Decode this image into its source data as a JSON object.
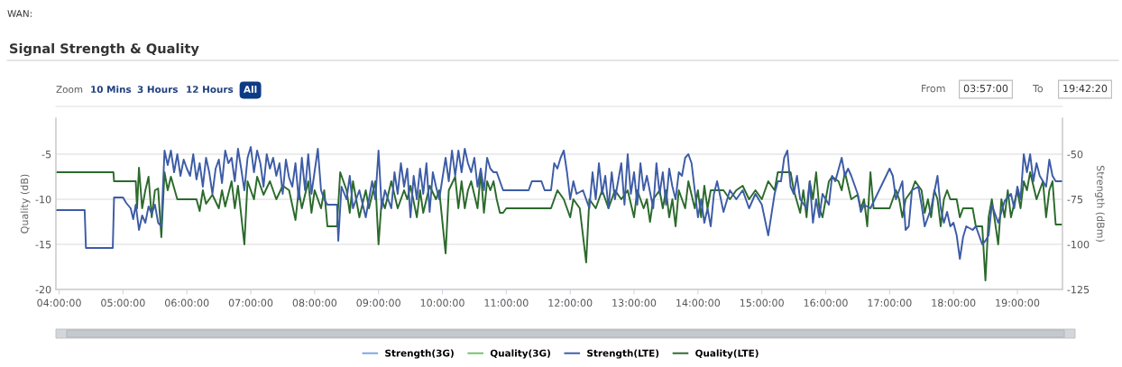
{
  "chart_data": {
    "type": "line",
    "title": "Signal Strength & Quality",
    "ylabel": "Quality (dB)",
    "y2label": "Strength (dBm)",
    "annotations": [
      "WAN:",
      "Zoom",
      "10 Mins",
      "3 Hours",
      "12 Hours",
      "All",
      "From",
      "03:57:00",
      "To",
      "19:42:20"
    ],
    "xlim": [
      3.95,
      19.706
    ],
    "xticks": [
      {
        "value": 4,
        "label": "04:00:00"
      },
      {
        "value": 5,
        "label": "05:00:00"
      },
      {
        "value": 6,
        "label": "06:00:00"
      },
      {
        "value": 7,
        "label": "07:00:00"
      },
      {
        "value": 8,
        "label": "08:00:00"
      },
      {
        "value": 9,
        "label": "09:00:00"
      },
      {
        "value": 10,
        "label": "10:00:00"
      },
      {
        "value": 11,
        "label": "11:00:00"
      },
      {
        "value": 12,
        "label": "12:00:00"
      },
      {
        "value": 13,
        "label": "13:00:00"
      },
      {
        "value": 14,
        "label": "14:00:00"
      },
      {
        "value": 15,
        "label": "15:00:00"
      },
      {
        "value": 16,
        "label": "16:00:00"
      },
      {
        "value": 17,
        "label": "17:00:00"
      },
      {
        "value": 18,
        "label": "18:00:00"
      },
      {
        "value": 19,
        "label": "19:00:00"
      }
    ],
    "ylim": [
      -20,
      -1
    ],
    "yticks": [
      -20,
      -15,
      -10,
      -5
    ],
    "y2lim": [
      -125,
      -30
    ],
    "y2ticks": [
      -125,
      -100,
      -75,
      -50
    ],
    "grid": "y",
    "legend": "bottom",
    "marker": "none",
    "line_style": "solid",
    "series": [
      {
        "name": "Strength(3G)",
        "color": "#7ca6e0",
        "axis": "y2"
      },
      {
        "name": "Quality(3G)",
        "color": "#6cc36c"
      },
      {
        "name": "Strength(LTE)",
        "color": "#3d5ca6",
        "axis": "y2",
        "x": [
          3.95,
          4.4,
          4.42,
          4.84,
          4.86,
          5.0,
          5.05,
          5.12,
          5.16,
          5.2,
          5.25,
          5.3,
          5.35,
          5.4,
          5.45,
          5.5,
          5.55,
          5.6,
          5.65,
          5.7,
          5.75,
          5.8,
          5.85,
          5.9,
          5.95,
          6.0,
          6.05,
          6.1,
          6.15,
          6.2,
          6.25,
          6.3,
          6.35,
          6.4,
          6.45,
          6.5,
          6.55,
          6.6,
          6.65,
          6.7,
          6.75,
          6.8,
          6.85,
          6.9,
          6.95,
          7.0,
          7.05,
          7.1,
          7.15,
          7.2,
          7.25,
          7.3,
          7.35,
          7.4,
          7.45,
          7.5,
          7.55,
          7.6,
          7.65,
          7.7,
          7.75,
          7.8,
          7.85,
          7.9,
          7.95,
          8.05,
          8.1,
          8.15,
          8.2,
          8.35,
          8.37,
          8.42,
          8.5,
          8.55,
          8.6,
          8.7,
          8.8,
          8.9,
          8.95,
          9.0,
          9.05,
          9.1,
          9.2,
          9.25,
          9.3,
          9.35,
          9.4,
          9.45,
          9.5,
          9.55,
          9.6,
          9.65,
          9.7,
          9.75,
          9.8,
          9.85,
          9.9,
          9.95,
          10.05,
          10.1,
          10.15,
          10.2,
          10.25,
          10.3,
          10.35,
          10.4,
          10.45,
          10.5,
          10.55,
          10.6,
          10.65,
          10.7,
          10.75,
          10.8,
          10.85,
          10.95,
          11.35,
          11.4,
          11.55,
          11.6,
          11.7,
          11.75,
          11.8,
          11.85,
          11.9,
          11.95,
          12.0,
          12.05,
          12.1,
          12.2,
          12.3,
          12.35,
          12.4,
          12.45,
          12.5,
          12.55,
          12.6,
          12.65,
          12.7,
          12.75,
          12.8,
          12.85,
          12.9,
          12.95,
          13.0,
          13.05,
          13.1,
          13.15,
          13.2,
          13.3,
          13.35,
          13.4,
          13.45,
          13.5,
          13.55,
          13.6,
          13.65,
          13.7,
          13.75,
          13.8,
          13.85,
          13.9,
          13.95,
          14.0,
          14.05,
          14.1,
          14.15,
          14.2,
          14.25,
          14.3,
          14.4,
          14.5,
          14.6,
          14.7,
          14.8,
          14.9,
          15.0,
          15.1,
          15.2,
          15.25,
          15.3,
          15.35,
          15.4,
          15.45,
          15.5,
          15.55,
          15.6,
          15.7,
          15.75,
          15.8,
          15.85,
          15.9,
          15.95,
          16.05,
          16.1,
          16.15,
          16.25,
          16.3,
          16.35,
          16.4,
          16.5,
          16.55,
          16.6,
          16.7,
          17.0,
          17.05,
          17.1,
          17.2,
          17.25,
          17.3,
          17.35,
          17.45,
          17.5,
          17.55,
          17.65,
          17.75,
          17.8,
          17.85,
          17.9,
          17.95,
          18.0,
          18.05,
          18.1,
          18.15,
          18.2,
          18.3,
          18.35,
          18.45,
          18.5,
          18.55,
          18.6,
          18.7,
          18.8,
          18.9,
          18.95,
          19.0,
          19.05,
          19.1,
          19.15,
          19.2,
          19.25,
          19.3,
          19.35,
          19.45,
          19.5,
          19.55,
          19.6,
          19.706
        ],
        "values": [
          -81,
          -81,
          -102,
          -102,
          -74,
          -74,
          -77,
          -80,
          -86,
          -78,
          -92,
          -84,
          -88,
          -79,
          -83,
          -78,
          -88,
          -90,
          -48,
          -56,
          -48,
          -60,
          -50,
          -62,
          -53,
          -58,
          -62,
          -50,
          -64,
          -55,
          -68,
          -52,
          -60,
          -72,
          -58,
          -53,
          -66,
          -48,
          -55,
          -52,
          -65,
          -47,
          -58,
          -70,
          -52,
          -46,
          -60,
          -48,
          -55,
          -68,
          -50,
          -58,
          -52,
          -62,
          -55,
          -72,
          -53,
          -63,
          -68,
          -55,
          -75,
          -52,
          -70,
          -50,
          -72,
          -47,
          -70,
          -75,
          -78,
          -78,
          -98,
          -68,
          -75,
          -62,
          -80,
          -70,
          -85,
          -65,
          -75,
          -48,
          -80,
          -70,
          -80,
          -60,
          -72,
          -55,
          -68,
          -58,
          -85,
          -62,
          -75,
          -58,
          -72,
          -55,
          -82,
          -60,
          -68,
          -75,
          -52,
          -65,
          -48,
          -62,
          -48,
          -60,
          -47,
          -55,
          -60,
          -52,
          -68,
          -58,
          -70,
          -52,
          -58,
          -60,
          -60,
          -70,
          -70,
          -65,
          -65,
          -70,
          -70,
          -55,
          -58,
          -52,
          -48,
          -60,
          -75,
          -65,
          -72,
          -70,
          -80,
          -60,
          -75,
          -55,
          -72,
          -62,
          -80,
          -60,
          -75,
          -65,
          -55,
          -78,
          -50,
          -72,
          -60,
          -78,
          -55,
          -70,
          -62,
          -80,
          -55,
          -72,
          -60,
          -78,
          -58,
          -68,
          -75,
          -60,
          -62,
          -52,
          -50,
          -55,
          -70,
          -85,
          -75,
          -88,
          -80,
          -90,
          -72,
          -65,
          -82,
          -70,
          -75,
          -70,
          -80,
          -72,
          -78,
          -95,
          -72,
          -65,
          -65,
          -52,
          -48,
          -68,
          -72,
          -62,
          -75,
          -80,
          -65,
          -88,
          -75,
          -85,
          -72,
          -78,
          -62,
          -65,
          -52,
          -62,
          -58,
          -62,
          -72,
          -82,
          -78,
          -80,
          -58,
          -62,
          -75,
          -65,
          -92,
          -90,
          -70,
          -68,
          -78,
          -90,
          -80,
          -62,
          -80,
          -88,
          -82,
          -90,
          -88,
          -95,
          -108,
          -96,
          -90,
          -92,
          -90,
          -100,
          -98,
          -95,
          -78,
          -88,
          -76,
          -72,
          -80,
          -68,
          -75,
          -50,
          -60,
          -50,
          -65,
          -55,
          -62,
          -68,
          -53,
          -62,
          -65,
          -65
        ]
      },
      {
        "name": "Quality(LTE)",
        "color": "#2b6a2b",
        "x": [
          3.95,
          4.85,
          4.86,
          5.2,
          5.22,
          5.25,
          5.3,
          5.35,
          5.4,
          5.45,
          5.5,
          5.55,
          5.6,
          5.65,
          5.7,
          5.75,
          5.85,
          6.15,
          6.2,
          6.25,
          6.3,
          6.4,
          6.5,
          6.55,
          6.6,
          6.7,
          6.75,
          6.8,
          6.9,
          6.95,
          7.05,
          7.1,
          7.2,
          7.3,
          7.4,
          7.5,
          7.6,
          7.7,
          7.75,
          7.8,
          7.9,
          7.95,
          8.0,
          8.1,
          8.15,
          8.2,
          8.35,
          8.4,
          8.5,
          8.55,
          8.6,
          8.7,
          8.8,
          8.85,
          8.95,
          9.0,
          9.05,
          9.1,
          9.2,
          9.3,
          9.4,
          9.45,
          9.5,
          9.6,
          9.65,
          9.7,
          9.8,
          9.9,
          9.95,
          10.05,
          10.1,
          10.2,
          10.25,
          10.3,
          10.35,
          10.4,
          10.45,
          10.55,
          10.6,
          10.65,
          10.7,
          10.75,
          10.8,
          10.85,
          10.9,
          10.95,
          11.0,
          11.7,
          11.75,
          11.8,
          11.9,
          12.0,
          12.05,
          12.15,
          12.25,
          12.3,
          12.4,
          12.5,
          12.6,
          12.7,
          12.8,
          12.9,
          13.0,
          13.05,
          13.15,
          13.2,
          13.25,
          13.3,
          13.4,
          13.45,
          13.5,
          13.55,
          13.6,
          13.65,
          13.7,
          13.8,
          13.85,
          13.95,
          14.0,
          14.05,
          14.1,
          14.15,
          14.2,
          14.3,
          14.4,
          14.5,
          14.6,
          14.7,
          14.8,
          14.9,
          15.0,
          15.1,
          15.2,
          15.25,
          15.45,
          15.5,
          15.6,
          15.65,
          15.7,
          15.75,
          15.8,
          15.85,
          15.9,
          15.95,
          16.0,
          16.05,
          16.1,
          16.2,
          16.25,
          16.3,
          16.4,
          16.5,
          16.55,
          16.6,
          16.65,
          16.7,
          16.75,
          17.0,
          17.05,
          17.1,
          17.15,
          17.2,
          17.25,
          17.35,
          17.4,
          17.5,
          17.55,
          17.6,
          17.65,
          17.7,
          17.75,
          17.8,
          17.85,
          17.9,
          17.95,
          18.05,
          18.1,
          18.15,
          18.3,
          18.35,
          18.45,
          18.5,
          18.55,
          18.6,
          18.7,
          18.75,
          18.8,
          18.85,
          18.9,
          19.0,
          19.05,
          19.1,
          19.15,
          19.2,
          19.3,
          19.4,
          19.45,
          19.5,
          19.55,
          19.6,
          19.706
        ],
        "values": [
          -7,
          -7,
          -8,
          -8,
          -11,
          -6.5,
          -11,
          -9,
          -7.5,
          -12,
          -9,
          -8.8,
          -14.2,
          -7,
          -9,
          -7.5,
          -10,
          -10,
          -11.3,
          -9,
          -10.5,
          -9.5,
          -11,
          -9,
          -10.8,
          -8,
          -11,
          -8.5,
          -15,
          -8,
          -10,
          -7.5,
          -9.5,
          -8,
          -10,
          -8.5,
          -9,
          -12.3,
          -9,
          -11,
          -8,
          -11.5,
          -9,
          -11,
          -9,
          -13,
          -13,
          -7,
          -9,
          -11.5,
          -8,
          -12,
          -9,
          -11,
          -8,
          -15,
          -10,
          -11,
          -8,
          -11,
          -9,
          -10,
          -8.5,
          -12,
          -9,
          -11.5,
          -8.5,
          -10,
          -9,
          -16,
          -9,
          -7.5,
          -11,
          -8,
          -11,
          -9,
          -8,
          -11,
          -7,
          -11.5,
          -8,
          -9,
          -8,
          -10,
          -11.5,
          -11.5,
          -11,
          -11,
          -10,
          -9,
          -10,
          -12,
          -10,
          -11,
          -17,
          -10,
          -11,
          -9,
          -11,
          -9,
          -10,
          -9,
          -12,
          -9,
          -11,
          -10,
          -12.5,
          -10,
          -9,
          -11,
          -9,
          -12,
          -10,
          -13,
          -9,
          -11,
          -8,
          -11,
          -9,
          -12,
          -8.5,
          -11,
          -9,
          -9,
          -9,
          -10,
          -9,
          -8.5,
          -10,
          -9,
          -10,
          -8,
          -9,
          -7,
          -7,
          -9,
          -11.5,
          -9,
          -12,
          -8,
          -10,
          -7,
          -11,
          -12,
          -10,
          -8,
          -7.5,
          -8,
          -9,
          -7,
          -10,
          -9.5,
          -11,
          -10,
          -13,
          -7,
          -11,
          -11,
          -10,
          -9,
          -10,
          -12,
          -10,
          -9,
          -8,
          -9,
          -11.5,
          -10,
          -12,
          -9,
          -10,
          -13,
          -10,
          -9,
          -10,
          -10,
          -12,
          -11,
          -11,
          -13,
          -13,
          -19,
          -12,
          -10,
          -15,
          -10,
          -12,
          -9,
          -12,
          -9,
          -11,
          -8,
          -9,
          -7,
          -10,
          -8,
          -12,
          -9,
          -8,
          -12.8,
          -12.8
        ]
      }
    ]
  }
}
